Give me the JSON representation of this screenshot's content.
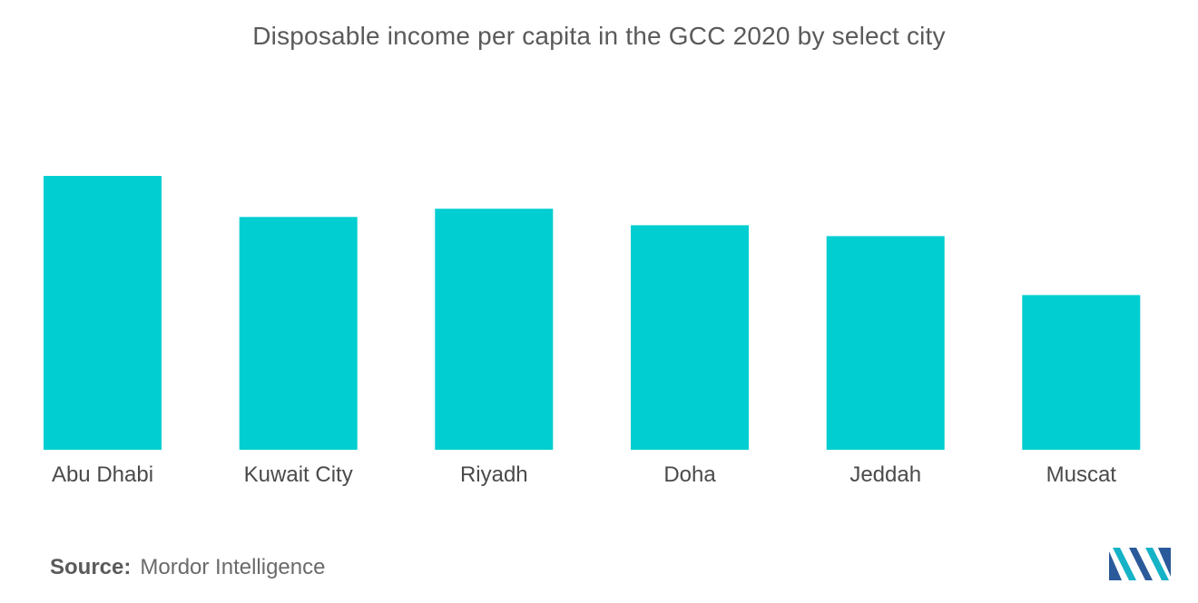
{
  "chart_data": {
    "type": "bar",
    "title": "Disposable income per capita in the GCC 2020 by select city",
    "categories": [
      "Abu Dhabi",
      "Kuwait City",
      "Riyadh",
      "Doha",
      "Jeddah",
      "Muscat"
    ],
    "values": [
      100,
      85,
      88,
      82,
      78,
      56.5
    ],
    "ylim": [
      0,
      100
    ],
    "xlabel": "",
    "ylabel": "",
    "grid": false,
    "legend": "none",
    "bar_color": "#00CED1"
  },
  "source": {
    "label": "Source:",
    "text": "Mordor Intelligence"
  },
  "logo": {
    "icon": "mordor-intelligence-logo",
    "colors": [
      "#2a5a9a",
      "#16b3c7"
    ]
  }
}
